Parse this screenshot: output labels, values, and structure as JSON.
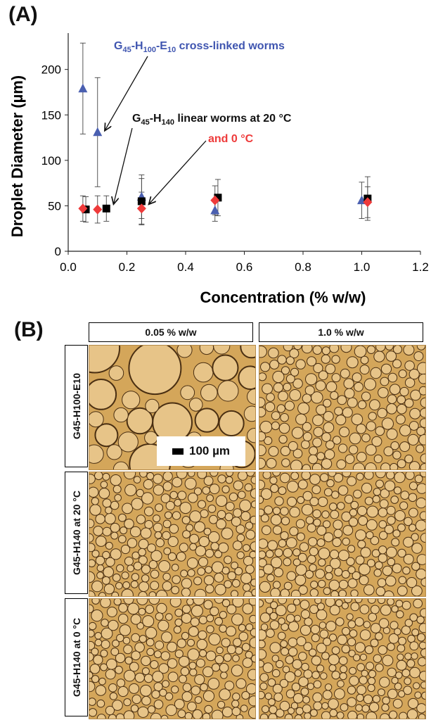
{
  "panel_a_label": "(A)",
  "panel_b_label": "(B)",
  "chart_data": {
    "type": "scatter",
    "xlabel": "Concentration (% w/w)",
    "ylabel": "Droplet Diameter (µm)",
    "xlim": [
      0.0,
      1.2
    ],
    "ylim": [
      0,
      240
    ],
    "x_ticks": [
      "0.0",
      "0.2",
      "0.4",
      "0.6",
      "0.8",
      "1.0",
      "1.2"
    ],
    "y_ticks": [
      "0",
      "50",
      "100",
      "150",
      "200"
    ],
    "grid": false,
    "series": [
      {
        "name": "G45-H100-E10 cross-linked worms",
        "marker": "triangle",
        "color": "#4a5fb0",
        "points": [
          {
            "x": 0.05,
            "y": 179,
            "err": 50
          },
          {
            "x": 0.1,
            "y": 131,
            "err": 60
          },
          {
            "x": 0.25,
            "y": 60,
            "err": 24
          },
          {
            "x": 0.5,
            "y": 45,
            "err": 12
          },
          {
            "x": 1.0,
            "y": 56,
            "err": 20
          }
        ]
      },
      {
        "name": "G45-H140 linear worms at 20 °C",
        "marker": "square",
        "color": "#000000",
        "points": [
          {
            "x": 0.06,
            "y": 46,
            "err": 14
          },
          {
            "x": 0.13,
            "y": 47,
            "err": 14
          },
          {
            "x": 0.25,
            "y": 55,
            "err": 25
          },
          {
            "x": 0.51,
            "y": 59,
            "err": 20
          },
          {
            "x": 1.02,
            "y": 58,
            "err": 24
          }
        ]
      },
      {
        "name": "and 0 °C",
        "marker": "diamond",
        "color": "#ee3a3a",
        "points": [
          {
            "x": 0.05,
            "y": 47,
            "err": 14
          },
          {
            "x": 0.1,
            "y": 46,
            "err": 15
          },
          {
            "x": 0.25,
            "y": 47,
            "err": 18
          },
          {
            "x": 0.5,
            "y": 56,
            "err": 16
          },
          {
            "x": 1.02,
            "y": 54,
            "err": 17
          }
        ]
      }
    ],
    "annotations": {
      "blue_label": "cross-linked worms",
      "black_label": "linear worms at 20 °C",
      "red_label": "and 0 °C"
    }
  },
  "micrographs": {
    "col_headers": [
      "0.05 % w/w",
      "1.0 % w/w"
    ],
    "row_labels": [
      "G45-H100-E10",
      "G45-H140 at 20 °C",
      "G45-H140 at 0 °C"
    ],
    "scale_bar_label": "100 µm",
    "colors": {
      "background": "#d4a65a",
      "droplet_fill": "#e7c488",
      "droplet_edge": "#4a2f12"
    }
  }
}
